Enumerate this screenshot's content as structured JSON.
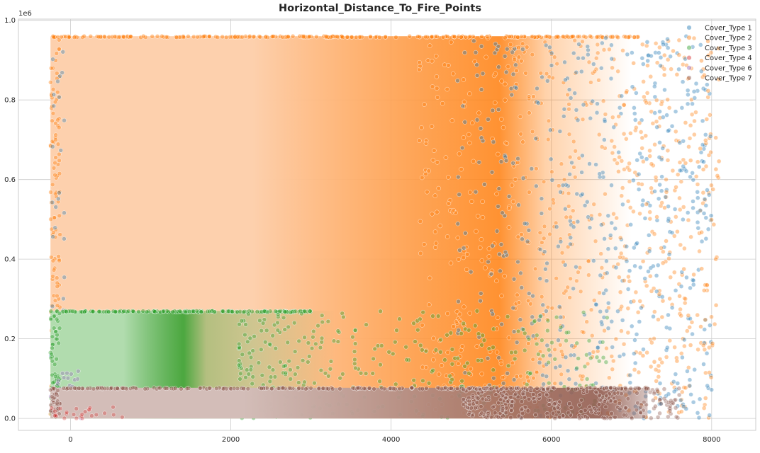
{
  "chart_data": {
    "type": "scatter",
    "title": "Horizontal_Distance_To_Fire_Points",
    "xlabel": "",
    "ylabel": "",
    "y_offset_label": "1e6",
    "xlim": [
      -650,
      8550
    ],
    "ylim": [
      -0.03,
      1.003
    ],
    "x_ticks": [
      0,
      2000,
      4000,
      6000,
      8000
    ],
    "x_tick_labels": [
      "0",
      "2000",
      "4000",
      "6000",
      "8000"
    ],
    "y_ticks": [
      0.0,
      0.2,
      0.4,
      0.6,
      0.8,
      1.0
    ],
    "y_tick_labels": [
      "0.0",
      "0.2",
      "0.4",
      "0.6",
      "0.8",
      "1.0"
    ],
    "grid": true,
    "legend_position": "top-right",
    "series": [
      {
        "name": "Cover_Type 1",
        "color": "#1f77b4",
        "x_range": [
          -250,
          8000
        ],
        "y_range": [
          0.0,
          0.96
        ],
        "dense_until_x": 5200
      },
      {
        "name": "Cover_Type 2",
        "color": "#ff7f0e",
        "x_range": [
          -250,
          8100
        ],
        "y_range": [
          0.0,
          0.96
        ],
        "dense_until_x": 6200
      },
      {
        "name": "Cover_Type 3",
        "color": "#2ca02c",
        "x_range": [
          -250,
          6700
        ],
        "y_range": [
          0.0,
          0.27
        ],
        "dense_until_x": 3000
      },
      {
        "name": "Cover_Type 4",
        "color": "#d62728",
        "x_range": [
          -250,
          1200
        ],
        "y_range": [
          0.0,
          0.03
        ],
        "dense_until_x": 500
      },
      {
        "name": "Cover_Type 6",
        "color": "#9467bd",
        "x_range": [
          -250,
          3000
        ],
        "y_range": [
          0.0,
          0.12
        ],
        "dense_until_x": 1500
      },
      {
        "name": "Cover_Type 7",
        "color": "#8c564b",
        "x_range": [
          -250,
          7600
        ],
        "y_range": [
          0.0,
          0.077
        ],
        "dense_until_x": 7000
      }
    ]
  }
}
